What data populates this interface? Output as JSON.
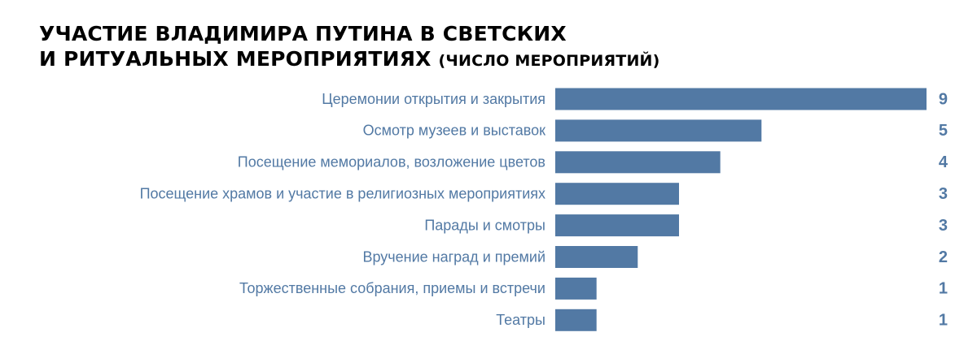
{
  "title": {
    "line1": "УЧАСТИЕ ВЛАДИМИРА ПУТИНА В СВЕТСКИХ",
    "line2": "И РИТУАЛЬНЫХ МЕРОПРИЯТИЯХ",
    "subtitle": "(ЧИСЛО МЕРОПРИЯТИЙ)"
  },
  "colors": {
    "bar": "#5279a4",
    "label": "#5279a4",
    "title": "#000000"
  },
  "chart_data": {
    "type": "bar",
    "orientation": "horizontal",
    "categories": [
      "Церемонии открытия и закрытия",
      "Осмотр музеев и выставок",
      "Посещение мемориалов, возложение цветов",
      "Посещение храмов и участие в религиозных мероприятиях",
      "Парады и смотры",
      "Вручение наград и премий",
      "Торжественные собрания, приемы и встречи",
      "Театры"
    ],
    "values": [
      9,
      5,
      4,
      3,
      3,
      2,
      1,
      1
    ],
    "title": "УЧАСТИЕ ВЛАДИМИРА ПУТИНА В СВЕТСКИХ И РИТУАЛЬНЫХ МЕРОПРИЯТИЯХ",
    "subtitle": "(ЧИСЛО МЕРОПРИЯТИЙ)",
    "xlabel": "",
    "ylabel": "",
    "xlim": [
      0,
      9
    ],
    "grid": false,
    "legend": "none",
    "data_labels": true
  }
}
